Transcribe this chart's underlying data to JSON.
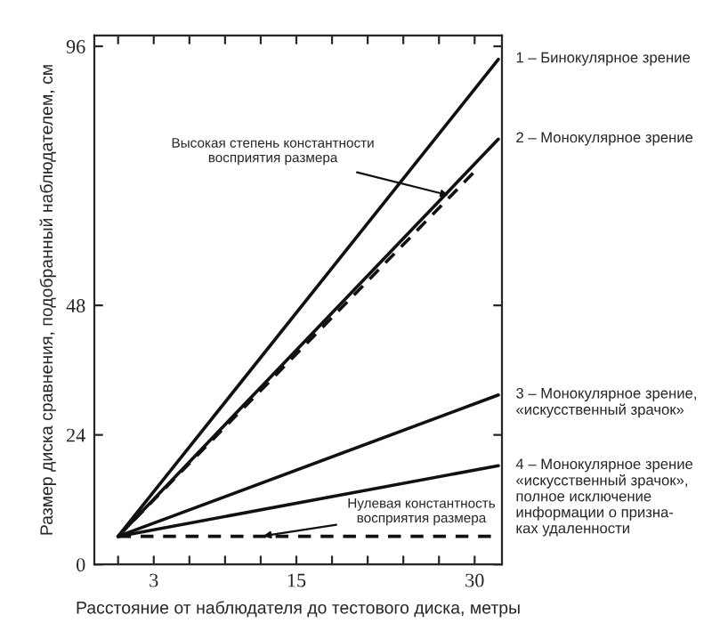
{
  "chart_data": {
    "type": "line",
    "xlabel": "Расстояние от наблюдателя до тестового диска, метры",
    "ylabel": "Размер диска сравнения, подобранный наблюдателем, см",
    "x": [
      0,
      32
    ],
    "series": [
      {
        "name": "1 – Бинокулярное зрение",
        "color": "#111111",
        "values": [
          5.2,
          93.6
        ]
      },
      {
        "name": "2 – Монокулярное зрение",
        "color": "#111111",
        "values": [
          5.2,
          78.8
        ]
      },
      {
        "name": "3 – Монокулярное зрение,\n«искусственный зрачок»",
        "color": "#111111",
        "values": [
          5.2,
          31.4
        ]
      },
      {
        "name": "4 – Монокулярное зрение\n«искусственный зрачок»,\nполное исключение\nинформации о призна-\nках удаленности",
        "color": "#111111",
        "values": [
          5.2,
          18.3
        ]
      },
      {
        "color": "#111111",
        "line_style": "dashed",
        "x": [
          0,
          30
        ],
        "values": [
          5.2,
          72.8
        ]
      },
      {
        "color": "#111111",
        "line_style": "dashed",
        "x": [
          0,
          32
        ],
        "values": [
          5.2,
          5.2
        ]
      }
    ],
    "xlim": [
      -2,
      32.3
    ],
    "ylim": [
      0,
      98
    ],
    "xticks": [
      {
        "value": 0,
        "label": null
      },
      3,
      {
        "value": 6,
        "label": null
      },
      {
        "value": 9,
        "label": null
      },
      {
        "value": 12,
        "label": null
      },
      15,
      {
        "value": 18,
        "label": null
      },
      {
        "value": 21,
        "label": null
      },
      {
        "value": 24,
        "label": null
      },
      {
        "value": 27,
        "label": null
      },
      30
    ],
    "yticks": [
      0,
      24,
      48,
      96
    ],
    "annotations": [
      {
        "text": "Высокая степень константности\nвосприятия размера",
        "x": 28,
        "y": 68.3
      },
      {
        "text": "Нулевая константность\nвосприятия размера",
        "x": 12,
        "y": 5.2
      }
    ],
    "grid": false,
    "legend": false
  }
}
